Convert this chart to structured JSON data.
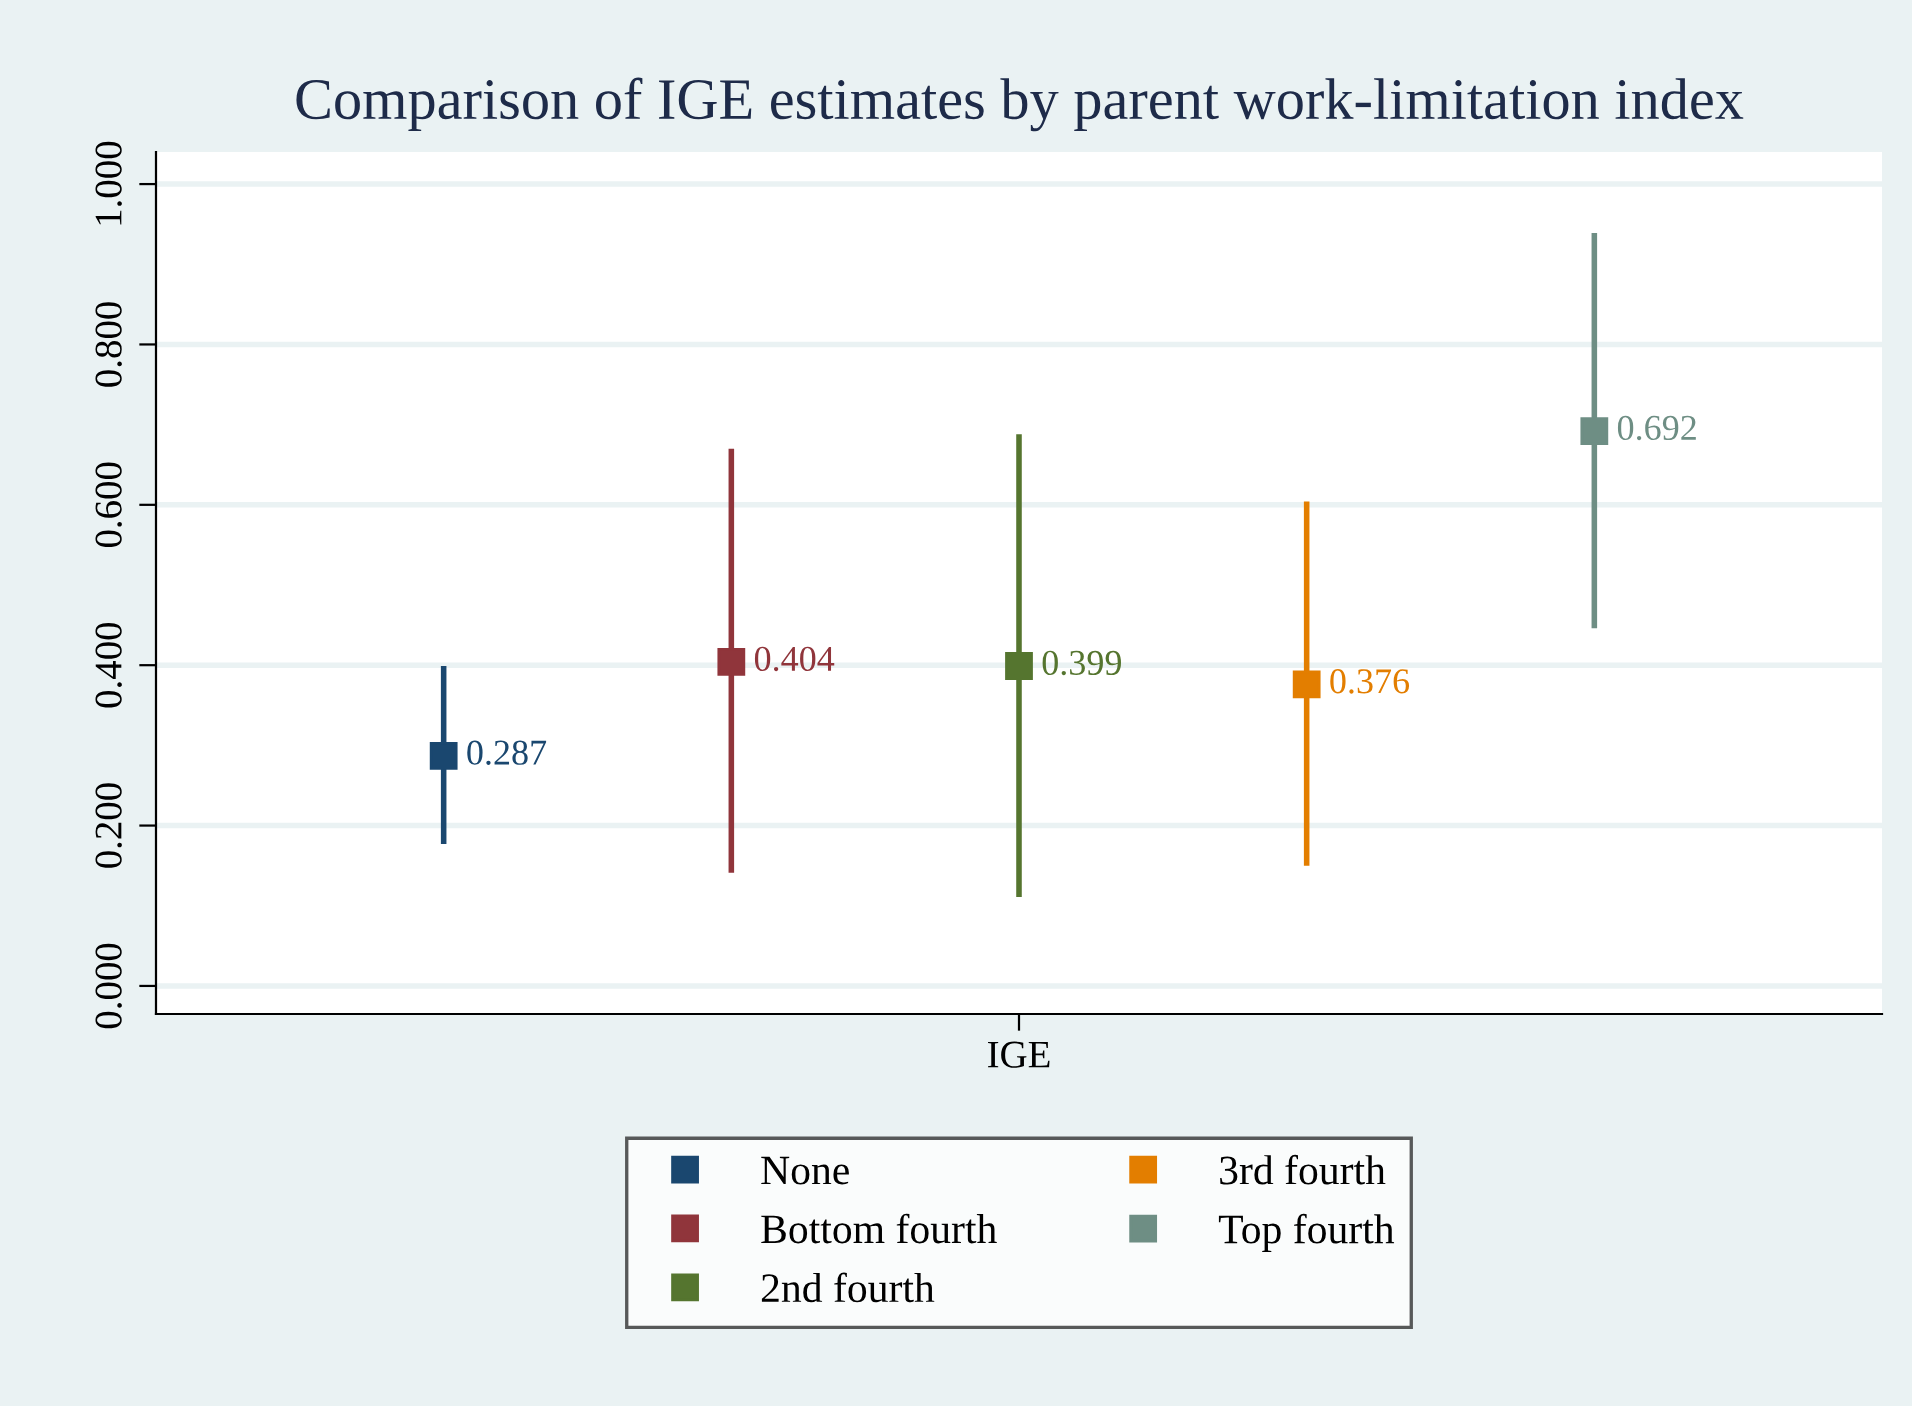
{
  "chart_data": {
    "type": "scatter",
    "title": "Comparison of IGE estimates by parent work-limitation index",
    "categories": [
      "IGE"
    ],
    "series": [
      {
        "name": "None",
        "color": "#1a476f",
        "values": [
          0.287
        ],
        "errors": [
          [
            0.177,
            0.399
          ]
        ]
      },
      {
        "name": "Bottom fourth",
        "color": "#90353b",
        "values": [
          0.404
        ],
        "errors": [
          [
            0.141,
            0.67
          ]
        ]
      },
      {
        "name": "2nd fourth",
        "color": "#55752f",
        "values": [
          0.399
        ],
        "errors": [
          [
            0.111,
            0.688
          ]
        ]
      },
      {
        "name": "3rd fourth",
        "color": "#e37e00",
        "values": [
          0.376
        ],
        "errors": [
          [
            0.15,
            0.604
          ]
        ]
      },
      {
        "name": "Top fourth",
        "color": "#6e8e84",
        "values": [
          0.692
        ],
        "errors": [
          [
            0.446,
            0.939
          ]
        ]
      }
    ],
    "ylim": [
      -0.035,
      1.04
    ],
    "yticks": [
      {
        "value": 0,
        "label": "0.000"
      },
      {
        "value": 0.2,
        "label": "0.200"
      },
      {
        "value": 0.4,
        "label": "0.400"
      },
      {
        "value": 0.6,
        "label": "0.600"
      },
      {
        "value": 0.8,
        "label": "0.800"
      },
      {
        "value": 1,
        "label": "1.000"
      }
    ],
    "grid": "y",
    "legend": "bottom",
    "marker": "square",
    "data_labels": true
  }
}
